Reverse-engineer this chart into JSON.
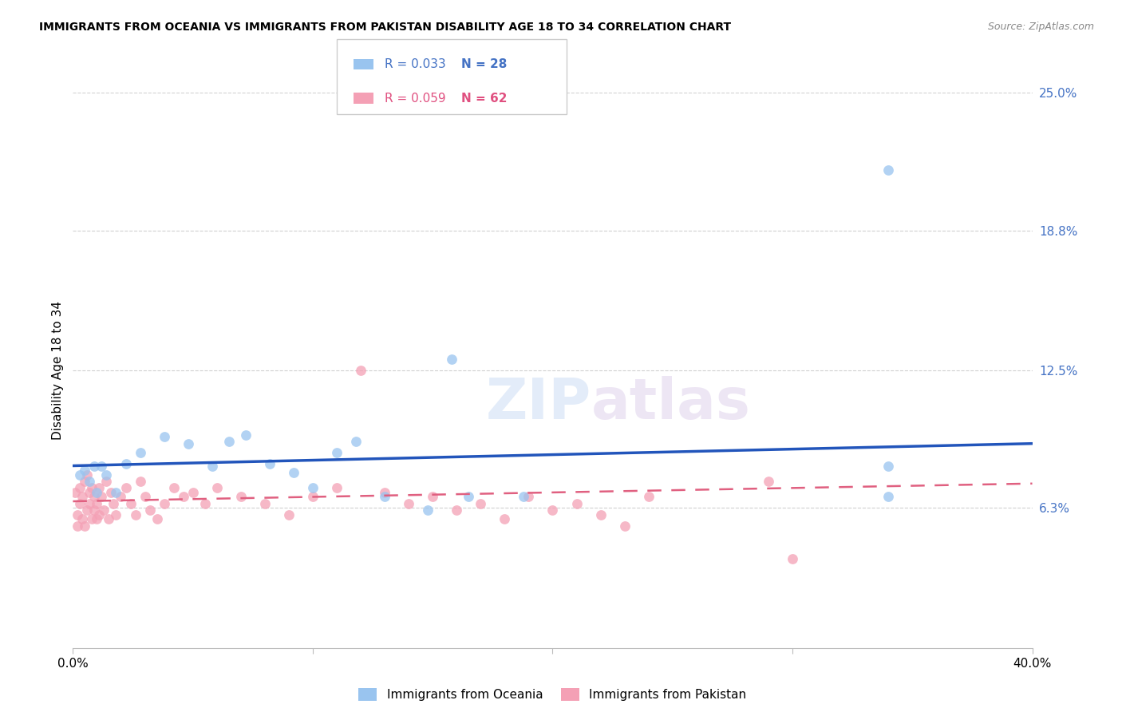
{
  "title": "IMMIGRANTS FROM OCEANIA VS IMMIGRANTS FROM PAKISTAN DISABILITY AGE 18 TO 34 CORRELATION CHART",
  "source": "Source: ZipAtlas.com",
  "ylabel": "Disability Age 18 to 34",
  "xlim": [
    0.0,
    0.4
  ],
  "ylim": [
    0.0,
    0.25
  ],
  "ytick_right_labels": [
    "25.0%",
    "18.8%",
    "12.5%",
    "6.3%"
  ],
  "ytick_right_values": [
    0.25,
    0.188,
    0.125,
    0.063
  ],
  "grid_color": "#d0d0d0",
  "oceania_color": "#99c4ef",
  "pakistan_color": "#f4a0b5",
  "oceania_line_color": "#2255bb",
  "pakistan_line_color": "#e06080",
  "marker_size": 85,
  "marker_alpha": 0.75,
  "legend_label_oceania": "Immigrants from Oceania",
  "legend_label_pakistan": "Immigrants from Pakistan",
  "oceania_trend_x": [
    0.0,
    0.4
  ],
  "oceania_trend_y": [
    0.082,
    0.092
  ],
  "pakistan_trend_x": [
    0.0,
    0.4
  ],
  "pakistan_trend_y": [
    0.066,
    0.074
  ],
  "oceania_x": [
    0.003,
    0.005,
    0.007,
    0.009,
    0.01,
    0.012,
    0.014,
    0.018,
    0.022,
    0.028,
    0.038,
    0.048,
    0.058,
    0.065,
    0.072,
    0.082,
    0.092,
    0.1,
    0.11,
    0.118,
    0.13,
    0.148,
    0.158,
    0.165,
    0.188,
    0.34,
    0.34,
    0.34
  ],
  "oceania_y": [
    0.078,
    0.08,
    0.075,
    0.082,
    0.07,
    0.082,
    0.078,
    0.07,
    0.083,
    0.088,
    0.095,
    0.092,
    0.082,
    0.093,
    0.096,
    0.083,
    0.079,
    0.072,
    0.088,
    0.093,
    0.068,
    0.062,
    0.13,
    0.068,
    0.068,
    0.082,
    0.068,
    0.215
  ],
  "pakistan_x": [
    0.001,
    0.002,
    0.002,
    0.003,
    0.003,
    0.004,
    0.004,
    0.005,
    0.005,
    0.006,
    0.006,
    0.007,
    0.007,
    0.008,
    0.008,
    0.009,
    0.009,
    0.01,
    0.01,
    0.011,
    0.011,
    0.012,
    0.013,
    0.014,
    0.015,
    0.016,
    0.017,
    0.018,
    0.02,
    0.022,
    0.024,
    0.026,
    0.028,
    0.03,
    0.032,
    0.035,
    0.038,
    0.042,
    0.046,
    0.05,
    0.055,
    0.06,
    0.07,
    0.08,
    0.09,
    0.1,
    0.11,
    0.12,
    0.13,
    0.14,
    0.15,
    0.16,
    0.17,
    0.18,
    0.19,
    0.2,
    0.21,
    0.22,
    0.23,
    0.24,
    0.29,
    0.3
  ],
  "pakistan_y": [
    0.07,
    0.06,
    0.055,
    0.065,
    0.072,
    0.068,
    0.058,
    0.075,
    0.055,
    0.078,
    0.062,
    0.065,
    0.07,
    0.058,
    0.072,
    0.062,
    0.068,
    0.065,
    0.058,
    0.072,
    0.06,
    0.068,
    0.062,
    0.075,
    0.058,
    0.07,
    0.065,
    0.06,
    0.068,
    0.072,
    0.065,
    0.06,
    0.075,
    0.068,
    0.062,
    0.058,
    0.065,
    0.072,
    0.068,
    0.07,
    0.065,
    0.072,
    0.068,
    0.065,
    0.06,
    0.068,
    0.072,
    0.125,
    0.07,
    0.065,
    0.068,
    0.062,
    0.065,
    0.058,
    0.068,
    0.062,
    0.065,
    0.06,
    0.055,
    0.068,
    0.075,
    0.04
  ]
}
